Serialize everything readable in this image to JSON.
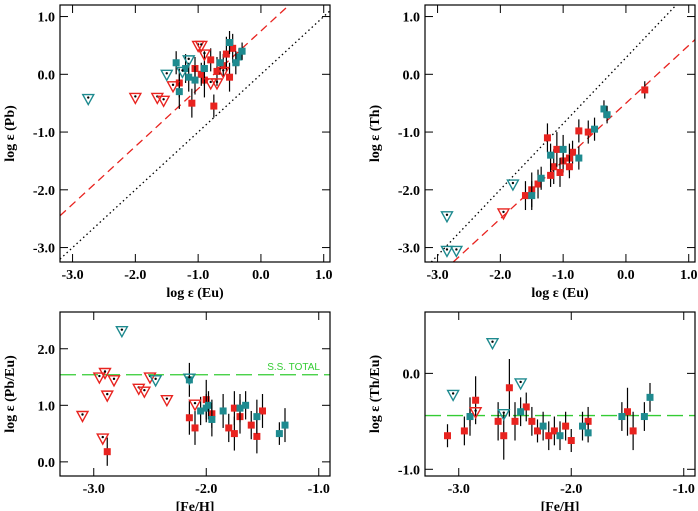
{
  "chart_data": [
    {
      "type": "scatter",
      "xlabel": "log ε (Eu)",
      "ylabel": "log ε (Pb)",
      "xlim": [
        -3.2,
        1.1
      ],
      "ylim": [
        -3.25,
        1.2
      ],
      "xticks": [
        {
          "value": -3,
          "label": "-3.0"
        },
        {
          "value": -2,
          "label": "-2.0"
        },
        {
          "value": -1,
          "label": "-1.0"
        },
        {
          "value": 0,
          "label": "0.0"
        },
        {
          "value": 1,
          "label": "1.0"
        }
      ],
      "yticks": [
        {
          "value": -3,
          "label": "-3.0"
        },
        {
          "value": -2,
          "label": "-2.0"
        },
        {
          "value": -1,
          "label": "-1.0"
        },
        {
          "value": 0,
          "label": "0.0"
        },
        {
          "value": 1,
          "label": "1.0"
        }
      ],
      "lines": [
        {
          "style": "dotted",
          "color": "#000000",
          "x": [
            -3.2,
            1.1
          ],
          "y": [
            -3.2,
            1.1
          ]
        },
        {
          "style": "dashed",
          "color": "#e8231f",
          "x": [
            -3.2,
            0.45
          ],
          "y": [
            -2.45,
            1.2
          ]
        }
      ],
      "series": [
        {
          "marker": "square",
          "color": "#e8231f",
          "x": [
            -1.1,
            -0.75,
            -0.9,
            -0.95,
            -0.7,
            -0.6,
            -0.5,
            -0.55,
            -1.05,
            -1.3,
            -0.8,
            -0.45
          ],
          "values": [
            -0.5,
            -0.55,
            -0.1,
            0.0,
            0.05,
            0.15,
            -0.05,
            0.35,
            0.1,
            -0.15,
            0.25,
            0.45
          ],
          "yerr": [
            0.25,
            0.2,
            0.3,
            0.2,
            0.25,
            0.2,
            0.25,
            0.3,
            0.2,
            0.25,
            0.2,
            0.25
          ]
        },
        {
          "marker": "square",
          "color": "#1e8a8f",
          "x": [
            -1.3,
            -1.2,
            -1.35,
            -1.05,
            -0.9,
            -0.65,
            -0.35,
            -0.3,
            -0.5,
            -0.4,
            -1.15
          ],
          "values": [
            -0.3,
            0.1,
            0.2,
            -0.1,
            0.1,
            0.2,
            0.3,
            0.4,
            0.55,
            0.2,
            -0.05
          ],
          "yerr": [
            0.3,
            0.25,
            0.2,
            0.25,
            0.3,
            0.2,
            0.15,
            0.15,
            0.2,
            0.2,
            0.25
          ]
        },
        {
          "marker": "triangle",
          "color": "#e8231f",
          "x": [
            -2.0,
            -1.65,
            -1.55,
            -1.4,
            -1.0,
            -0.95,
            -0.9,
            -0.8,
            -0.7,
            -0.6
          ],
          "values": [
            -0.4,
            -0.4,
            -0.45,
            -0.2,
            0.5,
            0.5,
            0.35,
            -0.15,
            -0.15,
            0.05
          ]
        },
        {
          "marker": "triangle",
          "color": "#1e8a8f",
          "x": [
            -2.75,
            -1.5,
            -1.25,
            -1.15
          ],
          "values": [
            -0.42,
            0.0,
            0.05,
            0.25
          ]
        }
      ]
    },
    {
      "type": "scatter",
      "xlabel": "log ε (Eu)",
      "ylabel": "log ε (Th)",
      "xlim": [
        -3.2,
        1.1
      ],
      "ylim": [
        -3.25,
        1.2
      ],
      "xticks": [
        {
          "value": -3,
          "label": "-3.0"
        },
        {
          "value": -2,
          "label": "-2.0"
        },
        {
          "value": -1,
          "label": "-1.0"
        },
        {
          "value": 0,
          "label": "0.0"
        },
        {
          "value": 1,
          "label": "1.0"
        }
      ],
      "yticks": [
        {
          "value": -3,
          "label": "-3.0"
        },
        {
          "value": -2,
          "label": "-2.0"
        },
        {
          "value": -1,
          "label": "-1.0"
        },
        {
          "value": 0,
          "label": "0.0"
        },
        {
          "value": 1,
          "label": "1.0"
        }
      ],
      "lines": [
        {
          "style": "dotted",
          "color": "#000000",
          "x": [
            -3.1,
            0.8
          ],
          "y": [
            -3.25,
            1.2
          ]
        },
        {
          "style": "dashed",
          "color": "#e8231f",
          "x": [
            -2.75,
            1.1
          ],
          "y": [
            -3.25,
            0.6
          ]
        }
      ],
      "series": [
        {
          "marker": "square",
          "color": "#e8231f",
          "x": [
            0.3,
            -0.75,
            -0.85,
            -0.9,
            -1.0,
            -1.05,
            -1.15,
            -1.2,
            -1.4,
            -1.5,
            -1.6,
            -1.1,
            -0.6,
            -1.25,
            -0.9
          ],
          "values": [
            -0.27,
            -0.98,
            -1.35,
            -1.45,
            -1.5,
            -1.7,
            -1.6,
            -1.75,
            -1.9,
            -2.0,
            -2.1,
            -1.3,
            -1.0,
            -1.1,
            -1.6
          ],
          "yerr": [
            0.15,
            0.2,
            0.2,
            0.25,
            0.2,
            0.25,
            0.3,
            0.2,
            0.25,
            0.3,
            0.25,
            0.3,
            0.2,
            0.25,
            0.2
          ]
        },
        {
          "marker": "square",
          "color": "#1e8a8f",
          "x": [
            -0.35,
            -0.3,
            -0.5,
            -1.35,
            -1.0,
            -1.2,
            -0.75,
            -1.5
          ],
          "values": [
            -0.6,
            -0.7,
            -0.95,
            -1.8,
            -1.3,
            -1.4,
            -1.45,
            -2.1
          ],
          "yerr": [
            0.15,
            0.15,
            0.2,
            0.2,
            0.25,
            0.2,
            0.2,
            0.25
          ]
        },
        {
          "marker": "triangle",
          "color": "#e8231f",
          "x": [
            -1.95
          ],
          "values": [
            -2.4
          ]
        },
        {
          "marker": "triangle",
          "color": "#1e8a8f",
          "x": [
            -2.85,
            -2.85,
            -2.7,
            -1.8
          ],
          "values": [
            -2.45,
            -3.05,
            -3.05,
            -1.9
          ]
        }
      ]
    },
    {
      "type": "scatter",
      "xlabel": "[Fe/H]",
      "ylabel": "log ε (Pb/Eu)",
      "xlim": [
        -3.3,
        -0.9
      ],
      "ylim": [
        -0.25,
        2.65
      ],
      "xticks": [
        {
          "value": -3,
          "label": "-3.0"
        },
        {
          "value": -2,
          "label": "-2.0"
        },
        {
          "value": -1,
          "label": "-1.0"
        }
      ],
      "yticks": [
        {
          "value": 0,
          "label": "0.0"
        },
        {
          "value": 1,
          "label": "1.0"
        },
        {
          "value": 2,
          "label": "2.0"
        }
      ],
      "lines": [
        {
          "style": "longdash",
          "color": "#33cc33",
          "x": [
            -3.3,
            -0.9
          ],
          "y": [
            1.54,
            1.54
          ],
          "label": "S.S. TOTAL"
        }
      ],
      "series": [
        {
          "marker": "square",
          "color": "#e8231f",
          "x": [
            -2.88,
            -2.15,
            -2.1,
            -1.95,
            -1.8,
            -1.75,
            -1.7,
            -1.6,
            -1.55,
            -1.5,
            -2.0,
            -1.75
          ],
          "values": [
            0.18,
            0.78,
            0.6,
            0.85,
            0.6,
            0.5,
            0.8,
            0.65,
            0.45,
            0.9,
            1.1,
            0.95
          ],
          "yerr": [
            0.25,
            0.3,
            0.3,
            0.25,
            0.25,
            0.3,
            0.3,
            0.25,
            0.3,
            0.3,
            0.35,
            0.3
          ]
        },
        {
          "marker": "square",
          "color": "#1e8a8f",
          "x": [
            -2.15,
            -2.0,
            -1.98,
            -1.95,
            -1.85,
            -1.7,
            -1.65,
            -1.55,
            -1.35,
            -1.3,
            -2.05
          ],
          "values": [
            1.45,
            0.95,
            1.0,
            0.75,
            0.9,
            0.95,
            1.0,
            0.8,
            0.5,
            0.65,
            0.9
          ],
          "yerr": [
            0.3,
            0.25,
            0.25,
            0.3,
            0.3,
            0.25,
            0.25,
            0.3,
            0.2,
            0.3,
            0.25
          ]
        },
        {
          "marker": "triangle",
          "color": "#e8231f",
          "x": [
            -3.1,
            -2.95,
            -2.9,
            -2.88,
            -2.82,
            -2.92,
            -2.6,
            -2.55,
            -2.5,
            -2.35,
            -2.1
          ],
          "values": [
            0.82,
            1.5,
            1.58,
            1.18,
            1.45,
            0.42,
            1.3,
            1.25,
            1.5,
            1.1,
            1.02
          ]
        },
        {
          "marker": "triangle",
          "color": "#1e8a8f",
          "x": [
            -2.75,
            -2.45,
            -2.15
          ],
          "values": [
            2.32,
            1.45,
            1.48
          ]
        }
      ]
    },
    {
      "type": "scatter",
      "xlabel": "[Fe/H]",
      "ylabel": "log ε (Th/Eu)",
      "xlim": [
        -3.3,
        -0.9
      ],
      "ylim": [
        -1.07,
        0.64
      ],
      "xticks": [
        {
          "value": -3,
          "label": "-3.0"
        },
        {
          "value": -2,
          "label": "-2.0"
        },
        {
          "value": -1,
          "label": "-1.0"
        }
      ],
      "yticks": [
        {
          "value": -1,
          "label": "-1.0"
        },
        {
          "value": 0,
          "label": "0.0"
        }
      ],
      "lines": [
        {
          "style": "longdash",
          "color": "#33cc33",
          "x": [
            -3.3,
            -0.9
          ],
          "y": [
            -0.44,
            -0.44
          ]
        }
      ],
      "series": [
        {
          "marker": "square",
          "color": "#e8231f",
          "x": [
            -3.1,
            -2.95,
            -2.9,
            -2.85,
            -2.65,
            -2.6,
            -2.55,
            -2.5,
            -2.4,
            -2.35,
            -2.3,
            -2.2,
            -2.15,
            -2.05,
            -2.0,
            -1.5,
            -1.45,
            -1.85
          ],
          "values": [
            -0.65,
            -0.6,
            -0.45,
            -0.28,
            -0.5,
            -0.65,
            -0.15,
            -0.5,
            -0.35,
            -0.5,
            -0.6,
            -0.65,
            -0.6,
            -0.55,
            -0.7,
            -0.4,
            -0.6,
            -0.5
          ],
          "yerr": [
            0.12,
            0.15,
            0.2,
            0.25,
            0.2,
            0.25,
            0.3,
            0.2,
            0.15,
            0.15,
            0.12,
            0.15,
            0.15,
            0.15,
            0.12,
            0.25,
            0.2,
            0.15
          ]
        },
        {
          "marker": "square",
          "color": "#1e8a8f",
          "x": [
            -2.45,
            -2.25,
            -2.1,
            -1.9,
            -1.85,
            -1.55,
            -1.35,
            -1.3,
            -2.9
          ],
          "values": [
            -0.4,
            -0.55,
            -0.65,
            -0.55,
            -0.62,
            -0.45,
            -0.45,
            -0.25,
            -0.45
          ],
          "yerr": [
            0.15,
            0.15,
            0.15,
            0.15,
            0.1,
            0.15,
            0.15,
            0.15,
            0.1
          ]
        },
        {
          "marker": "triangle",
          "color": "#e8231f",
          "x": [
            -2.85
          ],
          "values": [
            -0.4
          ]
        },
        {
          "marker": "triangle",
          "color": "#1e8a8f",
          "x": [
            -3.05,
            -2.7,
            -2.45,
            -2.6
          ],
          "values": [
            -0.22,
            0.32,
            -0.1,
            -0.42
          ]
        }
      ]
    }
  ]
}
